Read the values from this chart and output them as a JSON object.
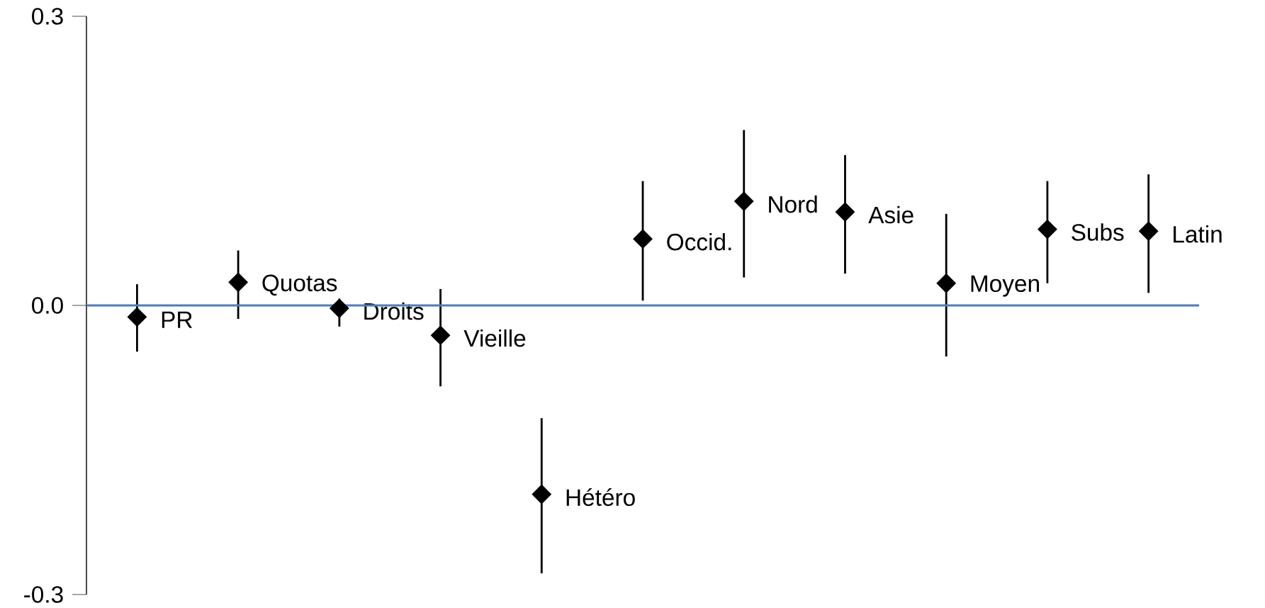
{
  "chart_data": {
    "type": "scatter",
    "marker": "diamond",
    "categories": [
      null,
      null,
      null,
      null,
      null,
      null,
      null,
      null,
      null,
      null,
      null
    ],
    "series": [
      {
        "color": "#000000",
        "values": [
          -0.012,
          0.024,
          -0.003,
          -0.031,
          -0.196,
          0.069,
          0.108,
          0.097,
          0.023,
          0.079,
          0.077
        ],
        "errors": [
          [
            -0.048,
            0.022
          ],
          [
            -0.014,
            0.057
          ],
          [
            -0.022,
            0.007
          ],
          [
            -0.084,
            0.017
          ],
          [
            -0.278,
            -0.117
          ],
          [
            0.005,
            0.129
          ],
          [
            0.029,
            0.182
          ],
          [
            0.033,
            0.156
          ],
          [
            -0.053,
            0.095
          ],
          [
            0.023,
            0.129
          ],
          [
            0.013,
            0.136
          ]
        ]
      }
    ],
    "annotations": [
      "PR",
      "Quotas",
      "Droits",
      "Vieille",
      "Hétéro",
      "Occid.",
      "Nord",
      "Asie",
      "Moyen",
      "Subs",
      "Latin"
    ],
    "ref_lines": [
      {
        "axis": "y",
        "value": 0,
        "color": "#4a7ebb"
      }
    ],
    "ylim": [
      -0.3,
      0.3
    ],
    "yticks": [
      {
        "value": -0.3,
        "label": "-0.3"
      },
      {
        "value": 0.0,
        "label": "0.0"
      },
      {
        "value": 0.3,
        "label": "0.3"
      }
    ]
  }
}
